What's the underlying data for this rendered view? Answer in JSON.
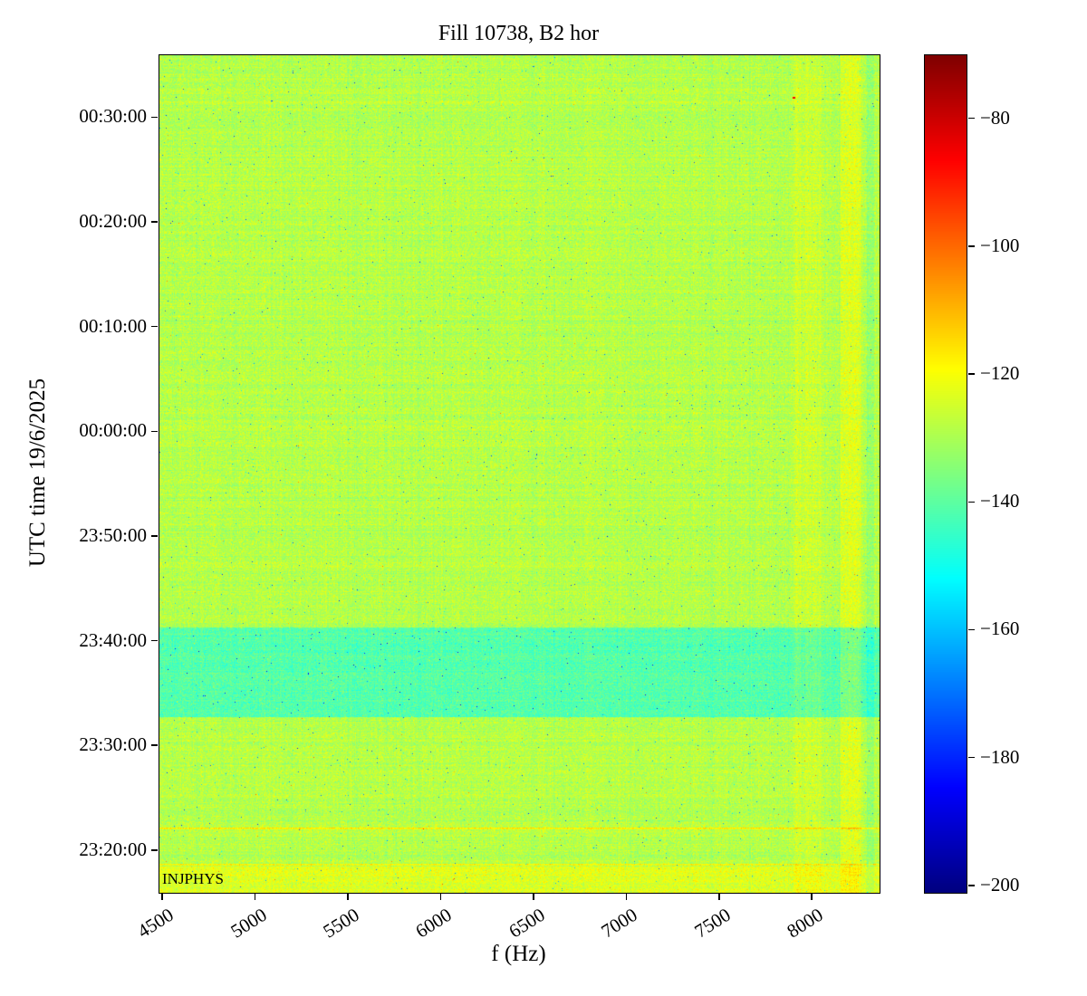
{
  "chart_data": {
    "type": "heatmap",
    "title": "Fill 10738, B2 hor",
    "xlabel": "f (Hz)",
    "ylabel": "UTC time 19/6/2025",
    "x_range_hz": [
      4480,
      8360
    ],
    "x_ticks_hz": [
      4500,
      5000,
      5500,
      6000,
      6500,
      7000,
      7500,
      8000
    ],
    "y_axis_date": "19/6/2025",
    "y_range_utc": [
      "23:16:00",
      "00:36:00"
    ],
    "y_ticks_utc": [
      "00:30:00",
      "00:20:00",
      "00:10:00",
      "00:00:00",
      "23:50:00",
      "23:40:00",
      "23:30:00",
      "23:20:00"
    ],
    "colorbar": {
      "colormap": "jet",
      "range_db": [
        -201,
        -70
      ],
      "ticks_db": [
        -80,
        -100,
        -120,
        -140,
        -160,
        -180,
        -200
      ]
    },
    "background_level_db": -128.5,
    "noise_std_db": 3.2,
    "features": [
      {
        "kind": "hband",
        "t0": "23:32:45",
        "t1": "23:41:20",
        "level_db": -141,
        "label": "quieter turquoise band"
      },
      {
        "kind": "hband",
        "t0": "23:16:00",
        "t1": "23:18:30",
        "level_db": -123,
        "label": "bright band at injection"
      },
      {
        "kind": "hline",
        "t": "23:18:40",
        "level_db": -119
      },
      {
        "kind": "hline",
        "t": "23:22:10",
        "level_db": -119
      },
      {
        "kind": "vband",
        "f0": 7900,
        "f1": 8050,
        "delta_db": 3
      },
      {
        "kind": "vband",
        "f0": 8150,
        "f1": 8260,
        "delta_db": 5
      },
      {
        "kind": "vband",
        "f0": 8290,
        "f1": 8330,
        "delta_db": -4
      },
      {
        "kind": "hotspot",
        "f": 7890,
        "t": "00:32:00",
        "level_db": -85
      }
    ],
    "annotation": {
      "text": "INJPHYS",
      "position": "bottom-left"
    }
  }
}
